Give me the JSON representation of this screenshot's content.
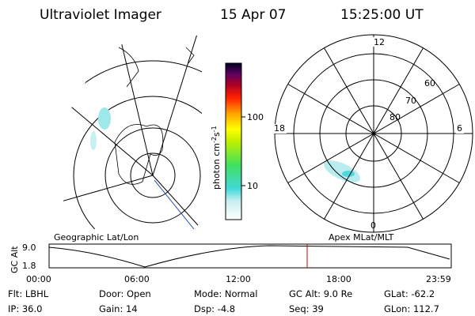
{
  "header": {
    "title": "Ultraviolet Imager",
    "date": "15 Apr 07",
    "time": "15:25:00 UT"
  },
  "colorbar": {
    "label": {
      "base": "photon cm",
      "exp1": "-2",
      "mid": "s",
      "exp2": "-1"
    },
    "ticks": [
      "100",
      "10"
    ]
  },
  "polar": {
    "mlt_labels": [
      "12",
      "18",
      "6",
      "0"
    ],
    "lat_labels": [
      "60",
      "70",
      "80"
    ]
  },
  "captions": {
    "left": "Geographic Lat/Lon",
    "right": "Apex MLat/MLT"
  },
  "orbit_plot": {
    "y_label": "GC Alt",
    "y_ticks": [
      "9.0",
      "1.8"
    ],
    "x_ticks": [
      "00:00",
      "06:00",
      "12:00",
      "18:00",
      "23:59"
    ]
  },
  "info": {
    "rows": [
      [
        "Flt: LBHL",
        "Door: Open",
        "Mode: Normal",
        "GC Alt: 9.0 Re",
        "GLat: -62.2"
      ],
      [
        "IP: 36.0",
        "Gain: 14",
        "Dsp:   -4.8",
        "Seq: 39",
        "GLon: 112.7"
      ]
    ]
  }
}
